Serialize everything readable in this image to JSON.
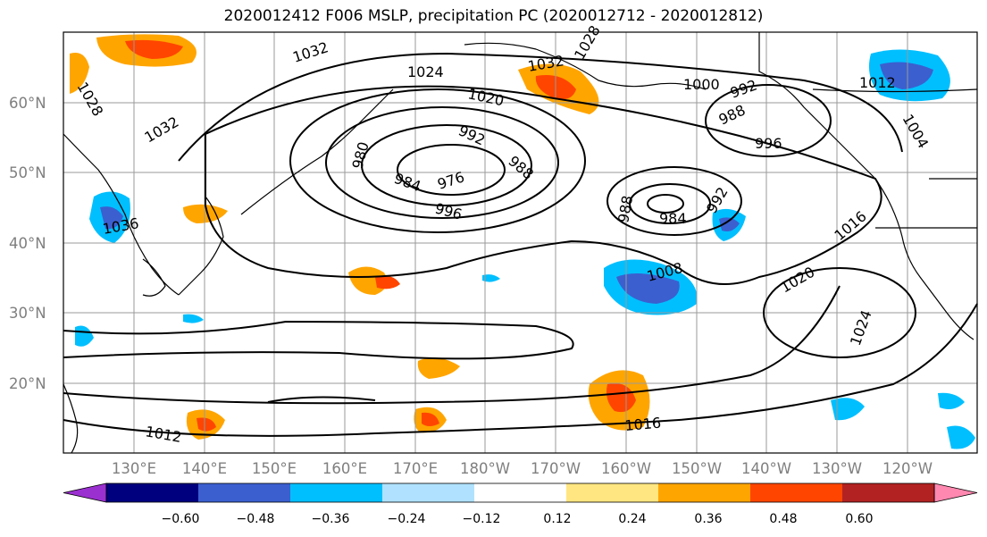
{
  "title": "2020012412 F006 MSLP, precipitation PC (2020012712 - 2020012812)",
  "map": {
    "lat_labels": [
      "60°N",
      "50°N",
      "40°N",
      "30°N",
      "20°N"
    ],
    "lon_labels": [
      "130°E",
      "140°E",
      "150°E",
      "160°E",
      "170°E",
      "180°W",
      "170°W",
      "160°W",
      "150°W",
      "140°W",
      "130°W",
      "120°W"
    ],
    "isobar_labels": [
      "1032",
      "1024",
      "1020",
      "1032",
      "1028",
      "1028",
      "1032",
      "1000",
      "992",
      "988",
      "996",
      "984",
      "976",
      "980",
      "992",
      "988",
      "996",
      "984",
      "988",
      "992",
      "1036",
      "1016",
      "1020",
      "1024",
      "1008",
      "1012",
      "1016",
      "1012",
      "1004"
    ],
    "grid": true
  },
  "colorbar": {
    "tick_labels": [
      "−0.60",
      "−0.48",
      "−0.36",
      "−0.24",
      "−0.12",
      "0.12",
      "0.24",
      "0.36",
      "0.48",
      "0.60"
    ],
    "colors": [
      "#9b30d0",
      "#00007f",
      "#3b5fcf",
      "#00bfff",
      "#b0e2ff",
      "#ffffff",
      "#ffe680",
      "#ffa500",
      "#ff4500",
      "#b22222",
      "#ff88b0"
    ]
  }
}
